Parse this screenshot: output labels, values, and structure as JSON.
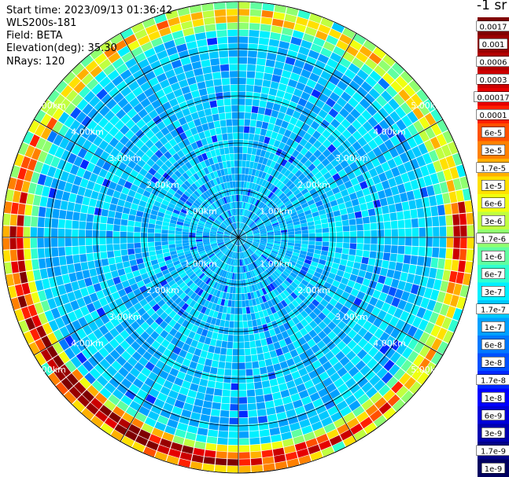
{
  "info": {
    "start_time": "Start time: 2023/09/13 01:36:42",
    "instrument": "WLS200s-181",
    "field": "Field: BETA",
    "elevation": "Elevation(deg): 35.30",
    "nrays": "NRays: 120"
  },
  "colorbar": {
    "unit": "-1 sr",
    "labels": [
      "0.0017",
      "0.001",
      "0.0006",
      "0.0003",
      "0.00017",
      "0.0001",
      "6e-5",
      "3e-5",
      "1.7e-5",
      "1e-5",
      "6e-6",
      "3e-6",
      "1.7e-6",
      "1e-6",
      "6e-7",
      "3e-7",
      "1.7e-7",
      "1e-7",
      "6e-8",
      "3e-8",
      "1.7e-8",
      "1e-8",
      "6e-9",
      "3e-9",
      "1.7e-9",
      "1e-9"
    ],
    "colors": [
      "#7f0000",
      "#990000",
      "#b30000",
      "#cc0000",
      "#e60000",
      "#ff2000",
      "#ff5000",
      "#ff8000",
      "#ffb000",
      "#ffe000",
      "#f0ff10",
      "#c0ff40",
      "#90ff70",
      "#60ffa0",
      "#30ffd0",
      "#00f0ff",
      "#00c8ff",
      "#00a0ff",
      "#0078ff",
      "#0050ff",
      "#0028ff",
      "#0000ff",
      "#0000d8",
      "#0000b0",
      "#000088",
      "#000060"
    ]
  },
  "chart_data": {
    "type": "heatmap",
    "projection": "polar PPI",
    "range_unit": "km",
    "range_rings_km": [
      1,
      2,
      3,
      4,
      5
    ],
    "ring_labels": [
      "1.00km",
      "2.00km",
      "3.00km",
      "4.00km",
      "5.00km"
    ],
    "n_rays": 120,
    "max_range_km": 5.0,
    "colorscale": "log10 attenuated backscatter",
    "value_range": [
      1e-09,
      0.0017
    ]
  }
}
